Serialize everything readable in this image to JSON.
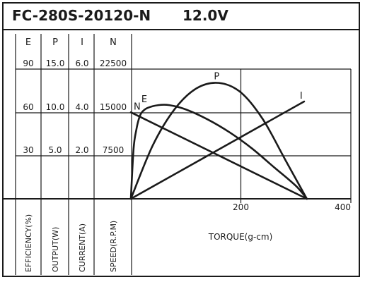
{
  "title": "FC-280S-20120-N",
  "voltage": "12.0V",
  "chart_data": {
    "type": "line",
    "xlabel": "TORQUE(g-cm)",
    "x_ticks": [
      200,
      400
    ],
    "xlim": [
      0,
      400
    ],
    "grid": true,
    "y_axes": [
      {
        "key": "E",
        "label": "EFFICIENCY(%)",
        "ticks": [
          "30",
          "60",
          "90"
        ],
        "values": [
          30,
          60,
          90
        ]
      },
      {
        "key": "P",
        "label": "OUTPUT(W)",
        "ticks": [
          "5.0",
          "10.0",
          "15.0"
        ],
        "values": [
          5,
          10,
          15
        ]
      },
      {
        "key": "I",
        "label": "CURRENT(A)",
        "ticks": [
          "2.0",
          "4.0",
          "6.0"
        ],
        "values": [
          2,
          4,
          6
        ]
      },
      {
        "key": "N",
        "label": "SPEED(R.P.M)",
        "ticks": [
          "7500",
          "15000",
          "22500"
        ],
        "values": [
          7500,
          15000,
          22500
        ]
      }
    ],
    "series": [
      {
        "name": "N",
        "axis": "N",
        "points": [
          [
            0,
            15000
          ],
          [
            320,
            0
          ]
        ]
      },
      {
        "name": "I",
        "axis": "I",
        "points": [
          [
            0,
            0
          ],
          [
            315,
            4.5
          ]
        ]
      },
      {
        "name": "P",
        "axis": "P",
        "points": [
          [
            0,
            0
          ],
          [
            40,
            6.2
          ],
          [
            80,
            10.4
          ],
          [
            120,
            12.8
          ],
          [
            160,
            13.4
          ],
          [
            200,
            12.3
          ],
          [
            240,
            9.2
          ],
          [
            280,
            4.6
          ],
          [
            320,
            0
          ]
        ]
      },
      {
        "name": "E",
        "axis": "E",
        "points": [
          [
            0,
            0
          ],
          [
            5,
            35
          ],
          [
            10,
            48
          ],
          [
            15,
            56
          ],
          [
            20,
            60
          ],
          [
            30,
            63
          ],
          [
            50,
            65
          ],
          [
            70,
            65
          ],
          [
            100,
            62
          ],
          [
            140,
            55
          ],
          [
            180,
            46
          ],
          [
            220,
            35
          ],
          [
            260,
            22
          ],
          [
            300,
            9
          ],
          [
            320,
            0
          ]
        ]
      }
    ]
  }
}
